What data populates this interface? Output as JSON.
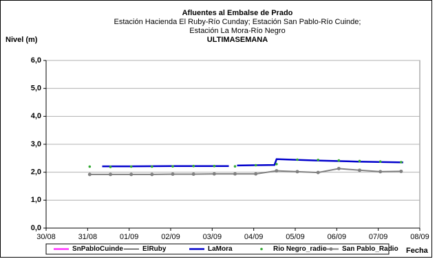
{
  "chart_data": {
    "type": "line",
    "title": "Afluentes al Embalse de Prado",
    "subtitle": [
      "Estación Hacienda El Ruby-Río Cunday; Estación San Pablo-Río Cuinde;",
      "Estación La Mora-Río Negro"
    ],
    "period": "ULTIMASEMANA",
    "y_label": "Nivel (m)",
    "x_label": "Fecha",
    "xlim": [
      0,
      9
    ],
    "xticks": [
      {
        "value": 0,
        "label": "30/08"
      },
      {
        "value": 1,
        "label": "31/08"
      },
      {
        "value": 2,
        "label": "01/09"
      },
      {
        "value": 3,
        "label": "02/09"
      },
      {
        "value": 4,
        "label": "03/09"
      },
      {
        "value": 5,
        "label": "04/09"
      },
      {
        "value": 6,
        "label": "05/09"
      },
      {
        "value": 7,
        "label": "06/09"
      },
      {
        "value": 8,
        "label": "07/09"
      },
      {
        "value": 9,
        "label": "08/09"
      }
    ],
    "ylim": [
      0,
      6
    ],
    "yticks": [
      {
        "value": 0,
        "label": "0,0"
      },
      {
        "value": 1,
        "label": "1,0"
      },
      {
        "value": 2,
        "label": "2,0"
      },
      {
        "value": 3,
        "label": "3,0"
      },
      {
        "value": 4,
        "label": "4,0"
      },
      {
        "value": 5,
        "label": "5,0"
      },
      {
        "value": 6,
        "label": "6,0"
      }
    ],
    "grid": true,
    "legend": "bottom",
    "series": [
      {
        "name": "SnPabloCuinde",
        "color": "#ff00ff",
        "style": "line",
        "x": [],
        "values": []
      },
      {
        "name": "ElRuby",
        "color": "#000000",
        "style": "thin",
        "x": [],
        "values": []
      },
      {
        "name": "LaMora",
        "color": "#0000cc",
        "style": "thick",
        "x": [
          1.35,
          2,
          3,
          4.4,
          4.5,
          4.6,
          5,
          5.5,
          5.55,
          6.5,
          7.5,
          8.6
        ],
        "values": [
          2.21,
          2.21,
          2.22,
          2.22,
          null,
          2.24,
          2.25,
          2.26,
          2.47,
          2.42,
          2.38,
          2.35
        ]
      },
      {
        "name": "Rio Negro_radio",
        "color": "#33aa33",
        "style": "dot",
        "x": [
          1.05,
          1.55,
          2.05,
          2.55,
          3.05,
          3.55,
          4.05,
          4.55,
          5.05,
          5.55,
          6.05,
          6.55,
          7.05,
          7.55,
          8.05,
          8.55
        ],
        "values": [
          2.2,
          2.19,
          2.2,
          2.2,
          2.21,
          2.22,
          2.22,
          2.21,
          2.25,
          2.29,
          2.45,
          2.44,
          2.42,
          2.4,
          2.38,
          2.36
        ]
      },
      {
        "name": "San Pablo_Radio",
        "color": "#808080",
        "style": "marker",
        "x": [
          1.05,
          1.55,
          2.05,
          2.55,
          3.05,
          3.55,
          4.05,
          4.55,
          5.05,
          5.55,
          6.05,
          6.55,
          7.05,
          7.55,
          8.05,
          8.55
        ],
        "values": [
          1.92,
          1.92,
          1.92,
          1.92,
          1.93,
          1.93,
          1.94,
          1.94,
          1.94,
          2.05,
          2.02,
          1.99,
          2.13,
          2.07,
          2.02,
          2.03
        ]
      }
    ]
  }
}
